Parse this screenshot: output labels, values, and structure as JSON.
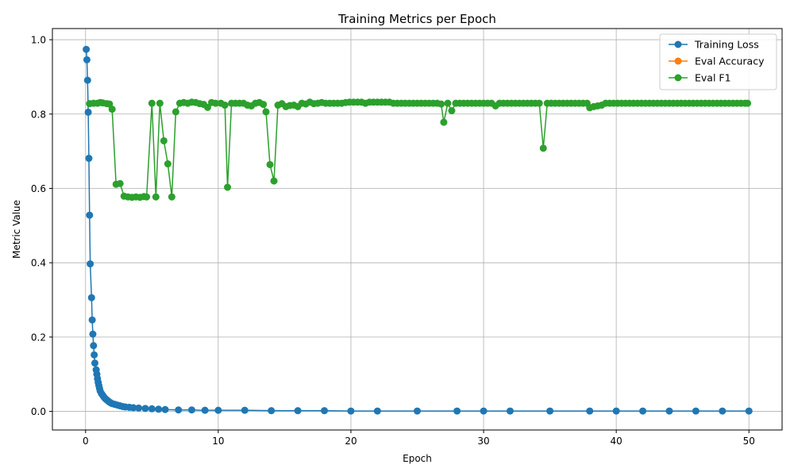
{
  "chart_data": {
    "type": "line",
    "title": "Training Metrics per Epoch",
    "xlabel": "Epoch",
    "ylabel": "Metric Value",
    "xlim": [
      -2.5,
      52.5
    ],
    "ylim": [
      -0.05,
      1.03
    ],
    "xticks": [
      0,
      10,
      20,
      30,
      40,
      50
    ],
    "yticks": [
      0.0,
      0.2,
      0.4,
      0.6,
      0.8,
      1.0
    ],
    "xtick_labels": [
      "0",
      "10",
      "20",
      "30",
      "40",
      "50"
    ],
    "ytick_labels": [
      "0.0",
      "0.2",
      "0.4",
      "0.6",
      "0.8",
      "1.0"
    ],
    "grid": true,
    "legend_position": "top-right",
    "colors": {
      "training_loss": "#1f77b4",
      "eval_accuracy": "#ff7f0e",
      "eval_f1": "#2ca02c"
    },
    "series": [
      {
        "name": "Training Loss",
        "key": "training_loss",
        "points": [
          [
            0.05,
            0.974
          ],
          [
            0.1,
            0.946
          ],
          [
            0.15,
            0.891
          ],
          [
            0.2,
            0.805
          ],
          [
            0.25,
            0.681
          ],
          [
            0.3,
            0.528
          ],
          [
            0.35,
            0.397
          ],
          [
            0.45,
            0.306
          ],
          [
            0.5,
            0.246
          ],
          [
            0.55,
            0.208
          ],
          [
            0.6,
            0.177
          ],
          [
            0.65,
            0.152
          ],
          [
            0.7,
            0.13
          ],
          [
            0.8,
            0.112
          ],
          [
            0.85,
            0.1
          ],
          [
            0.9,
            0.088
          ],
          [
            0.95,
            0.078
          ],
          [
            1.0,
            0.07
          ],
          [
            1.05,
            0.062
          ],
          [
            1.1,
            0.055
          ],
          [
            1.2,
            0.048
          ],
          [
            1.3,
            0.043
          ],
          [
            1.4,
            0.038
          ],
          [
            1.5,
            0.034
          ],
          [
            1.6,
            0.031
          ],
          [
            1.7,
            0.028
          ],
          [
            1.8,
            0.025
          ],
          [
            1.9,
            0.023
          ],
          [
            2.0,
            0.021
          ],
          [
            2.2,
            0.019
          ],
          [
            2.4,
            0.017
          ],
          [
            2.6,
            0.015
          ],
          [
            2.8,
            0.013
          ],
          [
            3.0,
            0.012
          ],
          [
            3.3,
            0.011
          ],
          [
            3.6,
            0.01
          ],
          [
            4.0,
            0.009
          ],
          [
            4.5,
            0.008
          ],
          [
            5.0,
            0.007
          ],
          [
            5.5,
            0.006
          ],
          [
            6.0,
            0.005
          ],
          [
            7.0,
            0.004
          ],
          [
            8.0,
            0.004
          ],
          [
            9.0,
            0.003
          ],
          [
            10.0,
            0.003
          ],
          [
            12.0,
            0.003
          ],
          [
            14.0,
            0.002
          ],
          [
            16.0,
            0.002
          ],
          [
            18.0,
            0.002
          ],
          [
            20.0,
            0.001
          ],
          [
            22.0,
            0.001
          ],
          [
            25.0,
            0.001
          ],
          [
            28.0,
            0.001
          ],
          [
            30.0,
            0.001
          ],
          [
            32.0,
            0.001
          ],
          [
            35.0,
            0.001
          ],
          [
            38.0,
            0.001
          ],
          [
            40.0,
            0.001
          ],
          [
            42.0,
            0.001
          ],
          [
            44.0,
            0.001
          ],
          [
            46.0,
            0.001
          ],
          [
            48.0,
            0.001
          ],
          [
            50.0,
            0.001
          ]
        ]
      },
      {
        "name": "Eval Accuracy",
        "key": "eval_accuracy",
        "points": []
      },
      {
        "name": "Eval F1",
        "key": "eval_f1",
        "points": [
          [
            0.3,
            0.828
          ],
          [
            0.6,
            0.829
          ],
          [
            0.9,
            0.829
          ],
          [
            1.1,
            0.831
          ],
          [
            1.3,
            0.83
          ],
          [
            1.6,
            0.828
          ],
          [
            1.8,
            0.827
          ],
          [
            2.0,
            0.813
          ],
          [
            2.3,
            0.611
          ],
          [
            2.6,
            0.613
          ],
          [
            2.9,
            0.579
          ],
          [
            3.2,
            0.577
          ],
          [
            3.5,
            0.576
          ],
          [
            3.8,
            0.577
          ],
          [
            4.1,
            0.576
          ],
          [
            4.4,
            0.578
          ],
          [
            4.6,
            0.577
          ],
          [
            5.0,
            0.829
          ],
          [
            5.3,
            0.577
          ],
          [
            5.6,
            0.829
          ],
          [
            5.9,
            0.728
          ],
          [
            6.2,
            0.666
          ],
          [
            6.5,
            0.577
          ],
          [
            6.8,
            0.806
          ],
          [
            7.1,
            0.829
          ],
          [
            7.4,
            0.831
          ],
          [
            7.7,
            0.829
          ],
          [
            8.0,
            0.832
          ],
          [
            8.3,
            0.831
          ],
          [
            8.6,
            0.828
          ],
          [
            8.9,
            0.826
          ],
          [
            9.2,
            0.818
          ],
          [
            9.5,
            0.831
          ],
          [
            9.8,
            0.829
          ],
          [
            10.2,
            0.829
          ],
          [
            10.5,
            0.824
          ],
          [
            10.7,
            0.603
          ],
          [
            11.0,
            0.829
          ],
          [
            11.3,
            0.829
          ],
          [
            11.6,
            0.829
          ],
          [
            11.9,
            0.829
          ],
          [
            12.2,
            0.824
          ],
          [
            12.5,
            0.822
          ],
          [
            12.8,
            0.829
          ],
          [
            13.1,
            0.831
          ],
          [
            13.4,
            0.826
          ],
          [
            13.6,
            0.806
          ],
          [
            13.9,
            0.664
          ],
          [
            14.2,
            0.62
          ],
          [
            14.5,
            0.824
          ],
          [
            14.8,
            0.828
          ],
          [
            15.1,
            0.82
          ],
          [
            15.4,
            0.823
          ],
          [
            15.7,
            0.824
          ],
          [
            16.0,
            0.82
          ],
          [
            16.3,
            0.829
          ],
          [
            16.6,
            0.827
          ],
          [
            16.9,
            0.832
          ],
          [
            17.2,
            0.828
          ],
          [
            17.5,
            0.829
          ],
          [
            17.8,
            0.831
          ],
          [
            18.1,
            0.829
          ],
          [
            18.4,
            0.829
          ],
          [
            18.7,
            0.829
          ],
          [
            19.0,
            0.829
          ],
          [
            19.3,
            0.829
          ],
          [
            19.6,
            0.831
          ],
          [
            19.9,
            0.832
          ],
          [
            20.2,
            0.832
          ],
          [
            20.5,
            0.832
          ],
          [
            20.8,
            0.832
          ],
          [
            21.1,
            0.829
          ],
          [
            21.4,
            0.832
          ],
          [
            21.7,
            0.832
          ],
          [
            22.0,
            0.832
          ],
          [
            22.3,
            0.832
          ],
          [
            22.6,
            0.832
          ],
          [
            22.9,
            0.832
          ],
          [
            23.2,
            0.829
          ],
          [
            23.5,
            0.829
          ],
          [
            23.8,
            0.829
          ],
          [
            24.1,
            0.829
          ],
          [
            24.4,
            0.829
          ],
          [
            24.7,
            0.829
          ],
          [
            25.0,
            0.829
          ],
          [
            25.3,
            0.829
          ],
          [
            25.6,
            0.829
          ],
          [
            25.9,
            0.829
          ],
          [
            26.2,
            0.829
          ],
          [
            26.5,
            0.829
          ],
          [
            26.8,
            0.827
          ],
          [
            27.0,
            0.778
          ],
          [
            27.3,
            0.829
          ],
          [
            27.6,
            0.809
          ],
          [
            27.9,
            0.829
          ],
          [
            28.2,
            0.829
          ],
          [
            28.5,
            0.829
          ],
          [
            28.8,
            0.829
          ],
          [
            29.1,
            0.829
          ],
          [
            29.4,
            0.829
          ],
          [
            29.7,
            0.829
          ],
          [
            30.0,
            0.829
          ],
          [
            30.3,
            0.829
          ],
          [
            30.6,
            0.829
          ],
          [
            30.9,
            0.822
          ],
          [
            31.2,
            0.829
          ],
          [
            31.5,
            0.829
          ],
          [
            31.8,
            0.829
          ],
          [
            32.1,
            0.829
          ],
          [
            32.4,
            0.829
          ],
          [
            32.7,
            0.829
          ],
          [
            33.0,
            0.829
          ],
          [
            33.3,
            0.829
          ],
          [
            33.6,
            0.829
          ],
          [
            33.9,
            0.829
          ],
          [
            34.2,
            0.829
          ],
          [
            34.5,
            0.708
          ],
          [
            34.8,
            0.829
          ],
          [
            35.1,
            0.829
          ],
          [
            35.4,
            0.829
          ],
          [
            35.7,
            0.829
          ],
          [
            36.0,
            0.829
          ],
          [
            36.3,
            0.829
          ],
          [
            36.6,
            0.829
          ],
          [
            36.9,
            0.829
          ],
          [
            37.2,
            0.829
          ],
          [
            37.5,
            0.829
          ],
          [
            37.8,
            0.829
          ],
          [
            38.0,
            0.817
          ],
          [
            38.3,
            0.82
          ],
          [
            38.6,
            0.822
          ],
          [
            38.9,
            0.824
          ],
          [
            39.2,
            0.829
          ],
          [
            39.5,
            0.829
          ],
          [
            39.8,
            0.829
          ],
          [
            40.1,
            0.829
          ],
          [
            40.4,
            0.829
          ],
          [
            40.7,
            0.829
          ],
          [
            41.0,
            0.829
          ],
          [
            41.3,
            0.829
          ],
          [
            41.6,
            0.829
          ],
          [
            41.9,
            0.829
          ],
          [
            42.2,
            0.829
          ],
          [
            42.5,
            0.829
          ],
          [
            42.8,
            0.829
          ],
          [
            43.1,
            0.829
          ],
          [
            43.4,
            0.829
          ],
          [
            43.7,
            0.829
          ],
          [
            44.0,
            0.829
          ],
          [
            44.3,
            0.829
          ],
          [
            44.6,
            0.829
          ],
          [
            44.9,
            0.829
          ],
          [
            45.2,
            0.829
          ],
          [
            45.5,
            0.829
          ],
          [
            45.8,
            0.829
          ],
          [
            46.1,
            0.829
          ],
          [
            46.4,
            0.829
          ],
          [
            46.7,
            0.829
          ],
          [
            47.0,
            0.829
          ],
          [
            47.3,
            0.829
          ],
          [
            47.6,
            0.829
          ],
          [
            47.9,
            0.829
          ],
          [
            48.2,
            0.829
          ],
          [
            48.5,
            0.829
          ],
          [
            48.8,
            0.829
          ],
          [
            49.1,
            0.829
          ],
          [
            49.4,
            0.829
          ],
          [
            49.7,
            0.829
          ],
          [
            49.9,
            0.829
          ]
        ]
      }
    ]
  }
}
